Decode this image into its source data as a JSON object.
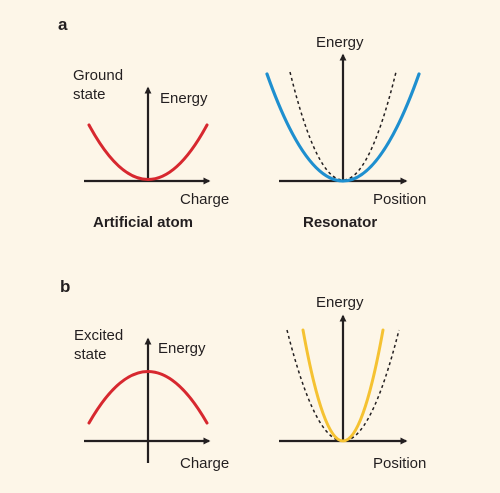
{
  "colors": {
    "background": "#fdf6e8",
    "axis": "#231f20",
    "atom_curve": "#d7282f",
    "resonator_ground_curve": "#1e8fcf",
    "resonator_excited_curve": "#f5c232",
    "reference_dashed": "#231f20"
  },
  "panel_a": {
    "label": "a",
    "atom": {
      "state_line1": "Ground",
      "state_line2": "state",
      "y_label": "Energy",
      "x_label": "Charge",
      "caption": "Artificial atom",
      "curve_shape": "upward parabola"
    },
    "resonator": {
      "y_label": "Energy",
      "x_label": "Position",
      "caption": "Resonator",
      "curve_shape": "wider parabola than dashed reference"
    }
  },
  "panel_b": {
    "label": "b",
    "atom": {
      "state_line1": "Excited",
      "state_line2": "state",
      "y_label": "Energy",
      "x_label": "Charge",
      "curve_shape": "downward parabola"
    },
    "resonator": {
      "y_label": "Energy",
      "x_label": "Position",
      "curve_shape": "narrower parabola than dashed reference"
    }
  }
}
